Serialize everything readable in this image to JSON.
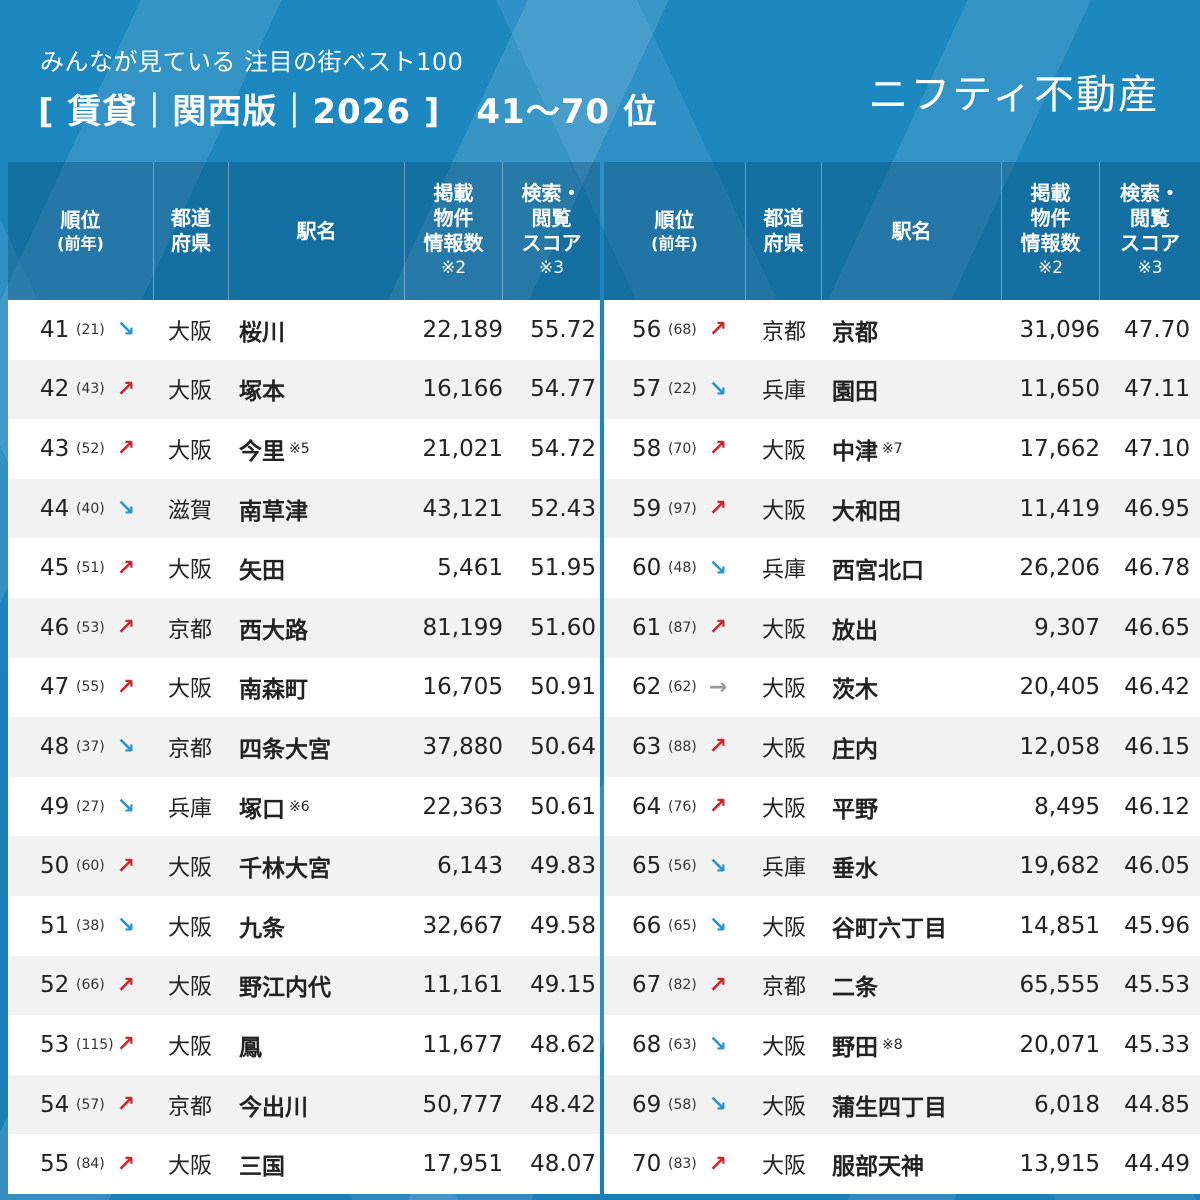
{
  "header": {
    "subtitle": "みんなが見ている 注目の街ベスト100",
    "title": "[ 賃貸｜関西版｜2026 ]",
    "range": "41〜70 位",
    "brand": "ニフティ不動産"
  },
  "columns": {
    "rank": "順位",
    "rank_sub": "(前年)",
    "pref_1": "都道",
    "pref_2": "府県",
    "name": "駅名",
    "count_1": "掲載",
    "count_2": "物件",
    "count_3": "情報数",
    "count_note": "※2",
    "score_1": "検索・",
    "score_2": "閲覧",
    "score_3": "スコア",
    "score_note": "※3"
  },
  "colors": {
    "background": "#1f86bd",
    "up_arrow": "#c8282d",
    "down_arrow": "#2a93c9",
    "flat_arrow": "#999999",
    "row_alt": "#f2f2f2"
  },
  "arrow_icons": {
    "up": "↗",
    "down": "↘",
    "flat": "→"
  },
  "left": [
    {
      "rank": "41",
      "prev": "(21)",
      "trend": "down",
      "arrow": "↘",
      "pref": "大阪",
      "name": "桜川",
      "note": "",
      "count": "22,189",
      "score": "55.72"
    },
    {
      "rank": "42",
      "prev": "(43)",
      "trend": "up",
      "arrow": "↗",
      "pref": "大阪",
      "name": "塚本",
      "note": "",
      "count": "16,166",
      "score": "54.77"
    },
    {
      "rank": "43",
      "prev": "(52)",
      "trend": "up",
      "arrow": "↗",
      "pref": "大阪",
      "name": "今里",
      "note": "※5",
      "count": "21,021",
      "score": "54.72"
    },
    {
      "rank": "44",
      "prev": "(40)",
      "trend": "down",
      "arrow": "↘",
      "pref": "滋賀",
      "name": "南草津",
      "note": "",
      "count": "43,121",
      "score": "52.43"
    },
    {
      "rank": "45",
      "prev": "(51)",
      "trend": "up",
      "arrow": "↗",
      "pref": "大阪",
      "name": "矢田",
      "note": "",
      "count": "5,461",
      "score": "51.95"
    },
    {
      "rank": "46",
      "prev": "(53)",
      "trend": "up",
      "arrow": "↗",
      "pref": "京都",
      "name": "西大路",
      "note": "",
      "count": "81,199",
      "score": "51.60"
    },
    {
      "rank": "47",
      "prev": "(55)",
      "trend": "up",
      "arrow": "↗",
      "pref": "大阪",
      "name": "南森町",
      "note": "",
      "count": "16,705",
      "score": "50.91"
    },
    {
      "rank": "48",
      "prev": "(37)",
      "trend": "down",
      "arrow": "↘",
      "pref": "京都",
      "name": "四条大宮",
      "note": "",
      "count": "37,880",
      "score": "50.64"
    },
    {
      "rank": "49",
      "prev": "(27)",
      "trend": "down",
      "arrow": "↘",
      "pref": "兵庫",
      "name": "塚口",
      "note": "※6",
      "count": "22,363",
      "score": "50.61"
    },
    {
      "rank": "50",
      "prev": "(60)",
      "trend": "up",
      "arrow": "↗",
      "pref": "大阪",
      "name": "千林大宮",
      "note": "",
      "count": "6,143",
      "score": "49.83"
    },
    {
      "rank": "51",
      "prev": "(38)",
      "trend": "down",
      "arrow": "↘",
      "pref": "大阪",
      "name": "九条",
      "note": "",
      "count": "32,667",
      "score": "49.58"
    },
    {
      "rank": "52",
      "prev": "(66)",
      "trend": "up",
      "arrow": "↗",
      "pref": "大阪",
      "name": "野江内代",
      "note": "",
      "count": "11,161",
      "score": "49.15"
    },
    {
      "rank": "53",
      "prev": "(115)",
      "trend": "up",
      "arrow": "↗",
      "pref": "大阪",
      "name": "鳳",
      "note": "",
      "count": "11,677",
      "score": "48.62"
    },
    {
      "rank": "54",
      "prev": "(57)",
      "trend": "up",
      "arrow": "↗",
      "pref": "京都",
      "name": "今出川",
      "note": "",
      "count": "50,777",
      "score": "48.42"
    },
    {
      "rank": "55",
      "prev": "(84)",
      "trend": "up",
      "arrow": "↗",
      "pref": "大阪",
      "name": "三国",
      "note": "",
      "count": "17,951",
      "score": "48.07"
    }
  ],
  "right": [
    {
      "rank": "56",
      "prev": "(68)",
      "trend": "up",
      "arrow": "↗",
      "pref": "京都",
      "name": "京都",
      "note": "",
      "count": "31,096",
      "score": "47.70"
    },
    {
      "rank": "57",
      "prev": "(22)",
      "trend": "down",
      "arrow": "↘",
      "pref": "兵庫",
      "name": "園田",
      "note": "",
      "count": "11,650",
      "score": "47.11"
    },
    {
      "rank": "58",
      "prev": "(70)",
      "trend": "up",
      "arrow": "↗",
      "pref": "大阪",
      "name": "中津",
      "note": "※7",
      "count": "17,662",
      "score": "47.10"
    },
    {
      "rank": "59",
      "prev": "(97)",
      "trend": "up",
      "arrow": "↗",
      "pref": "大阪",
      "name": "大和田",
      "note": "",
      "count": "11,419",
      "score": "46.95"
    },
    {
      "rank": "60",
      "prev": "(48)",
      "trend": "down",
      "arrow": "↘",
      "pref": "兵庫",
      "name": "西宮北口",
      "note": "",
      "count": "26,206",
      "score": "46.78"
    },
    {
      "rank": "61",
      "prev": "(87)",
      "trend": "up",
      "arrow": "↗",
      "pref": "大阪",
      "name": "放出",
      "note": "",
      "count": "9,307",
      "score": "46.65"
    },
    {
      "rank": "62",
      "prev": "(62)",
      "trend": "flat",
      "arrow": "→",
      "pref": "大阪",
      "name": "茨木",
      "note": "",
      "count": "20,405",
      "score": "46.42"
    },
    {
      "rank": "63",
      "prev": "(88)",
      "trend": "up",
      "arrow": "↗",
      "pref": "大阪",
      "name": "庄内",
      "note": "",
      "count": "12,058",
      "score": "46.15"
    },
    {
      "rank": "64",
      "prev": "(76)",
      "trend": "up",
      "arrow": "↗",
      "pref": "大阪",
      "name": "平野",
      "note": "",
      "count": "8,495",
      "score": "46.12"
    },
    {
      "rank": "65",
      "prev": "(56)",
      "trend": "down",
      "arrow": "↘",
      "pref": "兵庫",
      "name": "垂水",
      "note": "",
      "count": "19,682",
      "score": "46.05"
    },
    {
      "rank": "66",
      "prev": "(65)",
      "trend": "down",
      "arrow": "↘",
      "pref": "大阪",
      "name": "谷町六丁目",
      "note": "",
      "count": "14,851",
      "score": "45.96"
    },
    {
      "rank": "67",
      "prev": "(82)",
      "trend": "up",
      "arrow": "↗",
      "pref": "京都",
      "name": "二条",
      "note": "",
      "count": "65,555",
      "score": "45.53"
    },
    {
      "rank": "68",
      "prev": "(63)",
      "trend": "down",
      "arrow": "↘",
      "pref": "大阪",
      "name": "野田",
      "note": "※8",
      "count": "20,071",
      "score": "45.33"
    },
    {
      "rank": "69",
      "prev": "(58)",
      "trend": "down",
      "arrow": "↘",
      "pref": "大阪",
      "name": "蒲生四丁目",
      "note": "",
      "count": "6,018",
      "score": "44.85"
    },
    {
      "rank": "70",
      "prev": "(83)",
      "trend": "up",
      "arrow": "↗",
      "pref": "大阪",
      "name": "服部天神",
      "note": "",
      "count": "13,915",
      "score": "44.49"
    }
  ]
}
